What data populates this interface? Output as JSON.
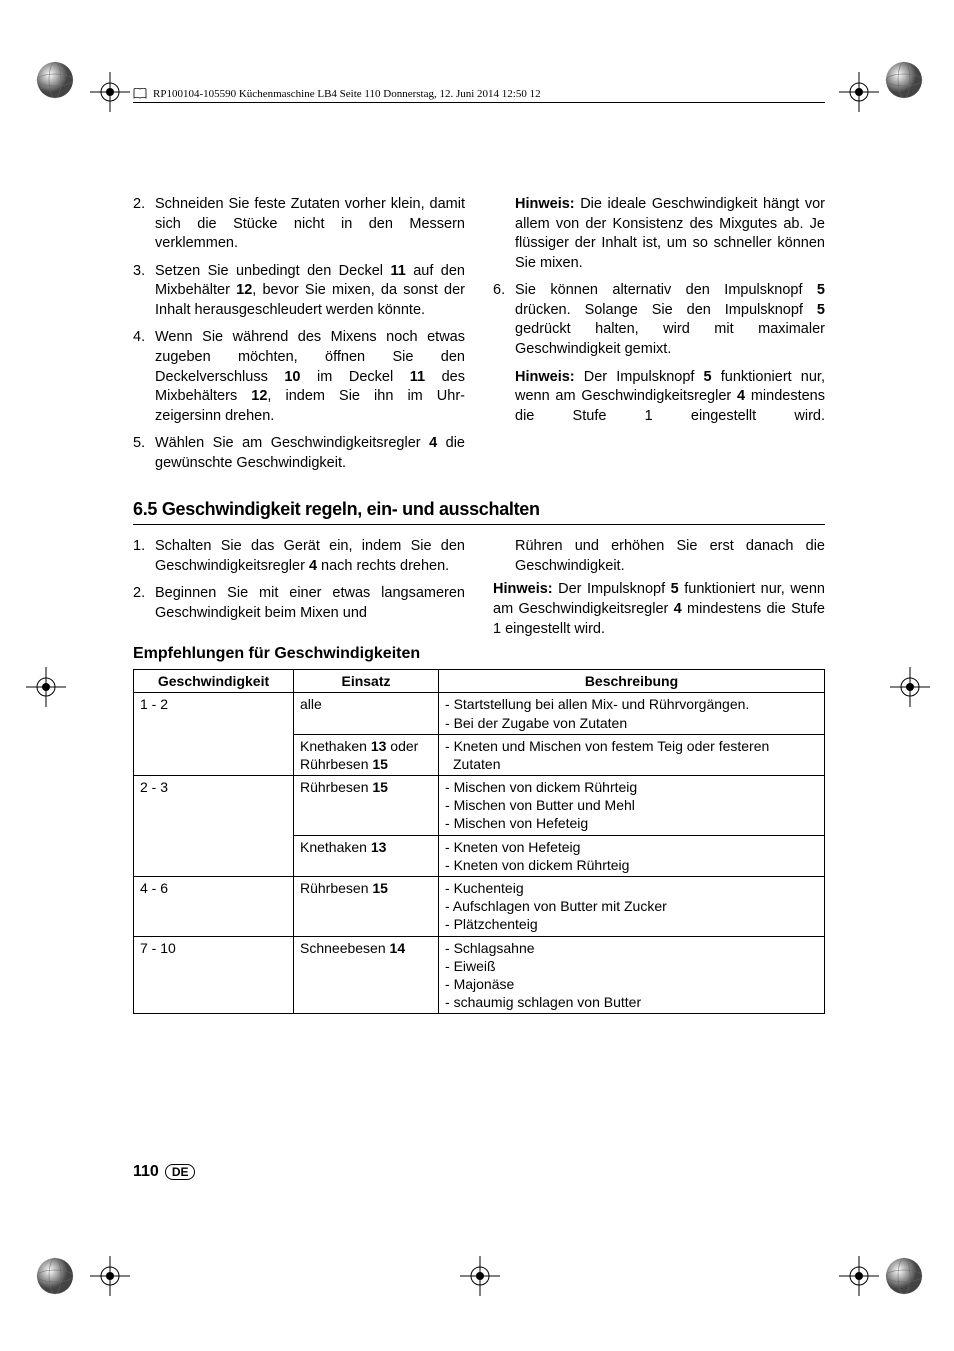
{
  "header": {
    "text": "RP100104-105590 Küchenmaschine LB4  Seite 110  Donnerstag, 12. Juni 2014  12:50 12"
  },
  "leftCol1": {
    "items": [
      {
        "num": "2.",
        "text": "Schneiden Sie feste Zutaten vorher klein, damit sich die Stücke nicht in den Messern verklemmen."
      },
      {
        "num": "3.",
        "text": "Setzen Sie unbedingt den Deckel <b>11</b> auf den Mixbehälter <b>12</b>, bevor Sie mixen, da sonst der Inhalt herausgeschleudert werden könnte."
      },
      {
        "num": "4.",
        "text": "Wenn Sie während des Mixens noch etwas zugeben möchten, öffnen Sie den Deckelverschluss <b>10</b> im Deckel <b>11</b> des Mixbehälters <b>12</b>, indem Sie ihn im Uhr­zeigersinn drehen."
      },
      {
        "num": "5.",
        "text": "Wählen Sie am Geschwindigkeitsregler <b>4</b> die gewünschte Geschwindigkeit."
      }
    ]
  },
  "rightCol1": {
    "hinweis1": "<b>Hinweis:</b> Die ideale Geschwindigkeit hängt vor allem von der Konsistenz des Mixgutes ab. Je flüssiger der Inhalt ist, um so schneller können Sie mixen.",
    "item6": {
      "num": "6.",
      "text": "Sie können alternativ den Impulsknopf <b>5</b> drücken. Solange Sie den Impulsknopf <b>5</b> gedrückt halten, wird mit maximaler Geschwindigkeit gemixt."
    },
    "hinweis2": "<b>Hinweis:</b> Der Impulsknopf <b>5</b> funktioniert nur, wenn am Geschwindigkeitsregler <b>4</b> mindestens die Stufe 1 eingestellt wird."
  },
  "section": {
    "title": "6.5 Geschwindigkeit regeln, ein- und ausschalten"
  },
  "leftCol2": {
    "items": [
      {
        "num": "1.",
        "text": "Schalten Sie das Gerät ein, indem Sie den Geschwindigkeitsregler <b>4</b> nach rechts drehen."
      },
      {
        "num": "2.",
        "text": "Beginnen Sie mit einer etwas langsame­ren Geschwindigkeit beim Mixen und"
      }
    ]
  },
  "rightCol2": {
    "cont": "Rühren und erhöhen Sie erst danach die Geschwindigkeit.",
    "hinweis": "<b>Hinweis:</b> Der Impulsknopf <b>5</b> funktioniert nur, wenn am Geschwindigkeitsregler <b>4</b> min­destens die Stufe 1 eingestellt wird."
  },
  "tableTitle": "Empfehlungen für Geschwindigkeiten",
  "table": {
    "headers": [
      "Geschwindigkeit",
      "Einsatz",
      "Beschreibung"
    ],
    "rows": [
      {
        "speed": "1 - 2",
        "rowspan": 2,
        "einsatz": "alle",
        "desc": [
          "Startstellung bei allen Mix- und Rührvorgängen.",
          "Bei der Zugabe von Zutaten"
        ]
      },
      {
        "einsatz": "Knethaken <b>13</b> oder Rührbesen <b>15</b>",
        "desc": [
          "Kneten und Mischen von festem Teig oder festeren Zutaten"
        ]
      },
      {
        "speed": "2 - 3",
        "rowspan": 2,
        "einsatz": "Rührbesen <b>15</b>",
        "desc": [
          "Mischen von dickem Rührteig",
          "Mischen von Butter und Mehl",
          "Mischen von Hefeteig"
        ]
      },
      {
        "einsatz": "Knethaken <b>13</b>",
        "desc": [
          "Kneten von Hefeteig",
          "Kneten von dickem Rührteig"
        ]
      },
      {
        "speed": "4 - 6",
        "rowspan": 1,
        "einsatz": "Rührbesen <b>15</b>",
        "desc": [
          "Kuchenteig",
          "Aufschlagen von Butter mit Zucker",
          "Plätzchenteig"
        ]
      },
      {
        "speed": "7 - 10",
        "rowspan": 1,
        "einsatz": "Schneebesen <b>14</b>",
        "desc": [
          "Schlagsahne",
          "Eiweiß",
          "Majonäse",
          "schaumig schlagen von Butter"
        ]
      }
    ]
  },
  "footer": {
    "page": "110",
    "lang": "DE"
  }
}
